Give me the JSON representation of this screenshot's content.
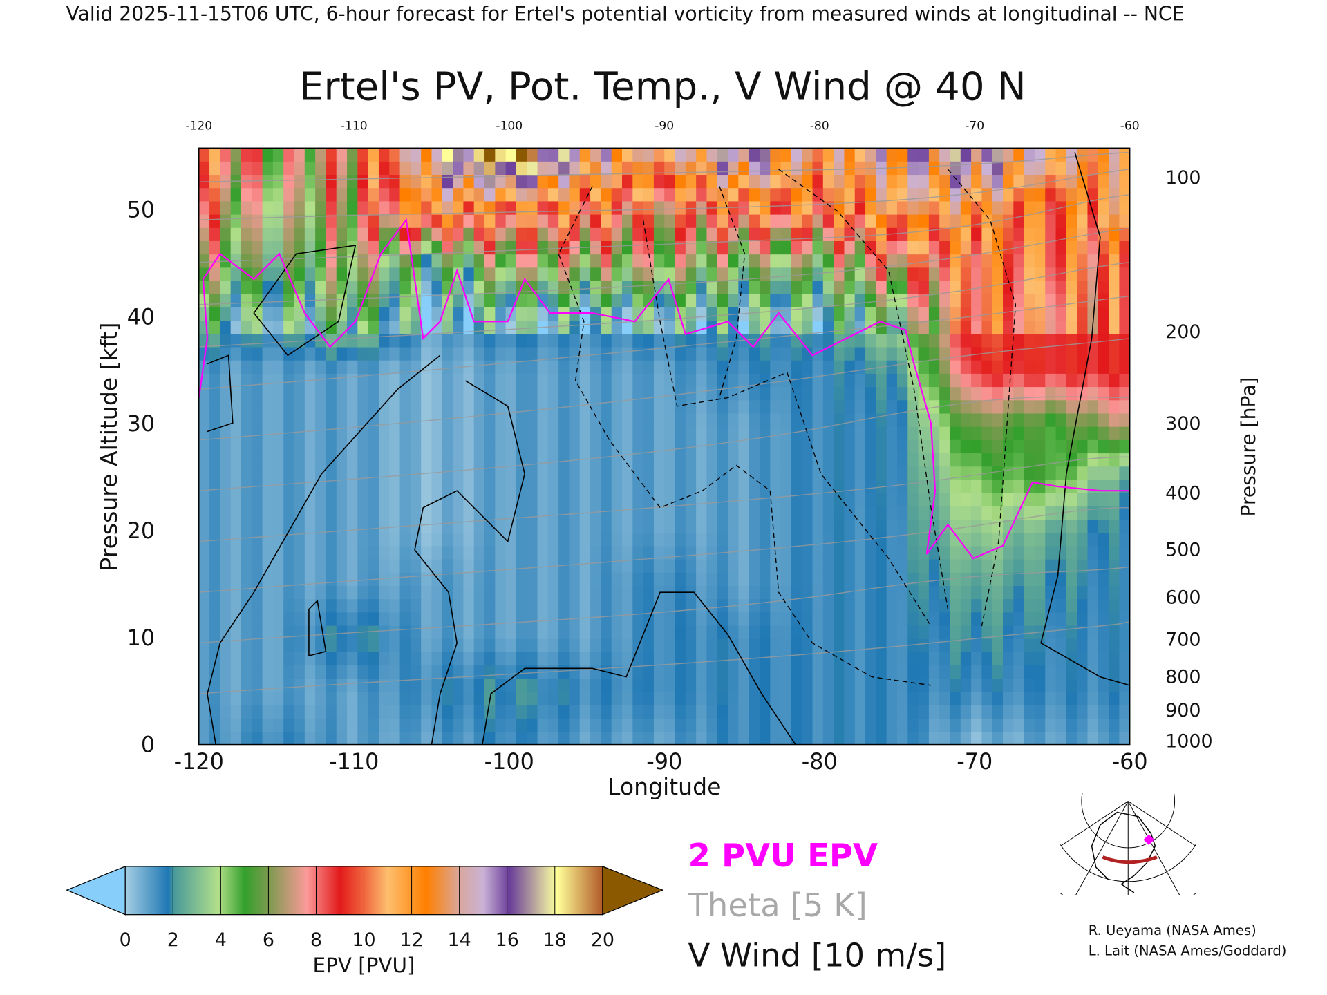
{
  "header": {
    "valid_line": "Valid 2025-11-15T06 UTC, 6-hour forecast for Ertel's potential vorticity from measured winds at longitudinal -- NCE"
  },
  "chart_data": {
    "type": "heatmap",
    "title": "Ertel's PV, Pot. Temp., V Wind @ 40 N",
    "xlabel": "Longitude",
    "ylabel": "Pressure Altitude [kft]",
    "y2label": "Pressure [hPa]",
    "xlim": [
      -120,
      -60
    ],
    "ylim": [
      0,
      55.8
    ],
    "x_ticks": [
      "-120",
      "-110",
      "-100",
      "-90",
      "-80",
      "-70",
      "-60"
    ],
    "x_tick_values": [
      -120,
      -110,
      -100,
      -90,
      -80,
      -70,
      -60
    ],
    "top_ticks": [
      "-120",
      "-110",
      "-100",
      "-90",
      "-80",
      "-70",
      "-60"
    ],
    "y_ticks": [
      "0",
      "10",
      "20",
      "30",
      "40",
      "50"
    ],
    "y_tick_values": [
      0,
      10,
      20,
      30,
      40,
      50
    ],
    "pressure_ticks": [
      "100",
      "200",
      "300",
      "400",
      "500",
      "600",
      "700",
      "800",
      "900",
      "1000"
    ],
    "pressure_values": [
      100,
      200,
      300,
      400,
      500,
      600,
      700,
      800,
      900,
      1000
    ],
    "grid_lon": [
      -120,
      -115,
      -110,
      -105,
      -100,
      -95,
      -90,
      -85,
      -80,
      -75,
      -70,
      -65,
      -60
    ],
    "grid_alt_kft": [
      0,
      5,
      10,
      15,
      20,
      25,
      30,
      35,
      40,
      45,
      50,
      55
    ],
    "epv_pvu": [
      [
        1,
        1.5,
        1,
        1,
        1.5,
        1,
        1,
        1.5,
        1.5,
        1.5,
        0.5,
        1,
        1
      ],
      [
        1,
        1,
        1,
        1.5,
        2,
        1.5,
        1.5,
        1.5,
        1.5,
        1.5,
        1.5,
        1.5,
        1.5
      ],
      [
        1,
        1,
        2,
        1,
        1,
        1,
        1.5,
        1.5,
        1.5,
        1.5,
        2,
        1.6,
        1.5
      ],
      [
        1,
        1,
        1,
        1,
        1,
        1,
        1.5,
        1,
        1.5,
        1.5,
        2.5,
        2,
        1.5
      ],
      [
        1,
        1,
        1,
        0.5,
        1,
        1,
        1,
        1,
        1.5,
        1.5,
        3.5,
        2.5,
        1.5
      ],
      [
        1,
        1,
        1,
        0.5,
        1,
        1,
        1,
        1,
        1.5,
        1.6,
        4.5,
        5,
        2
      ],
      [
        1,
        1,
        1,
        0.5,
        1,
        1,
        1,
        1,
        1.5,
        1.6,
        6,
        5,
        7
      ],
      [
        1,
        1,
        1,
        0.5,
        1,
        1,
        1,
        1.5,
        1.5,
        2,
        9,
        9,
        9
      ],
      [
        3,
        2,
        4,
        1,
        2,
        1.5,
        2,
        2,
        2,
        4,
        10,
        9,
        9
      ],
      [
        6,
        4,
        6,
        3,
        6,
        6,
        6,
        5,
        5,
        8,
        10,
        10,
        9
      ],
      [
        8,
        5,
        7,
        12,
        10,
        10,
        8,
        10,
        10,
        12,
        12,
        10,
        12
      ],
      [
        10,
        6,
        8,
        15,
        20,
        14,
        12,
        16,
        12,
        14,
        16,
        13,
        12
      ]
    ],
    "colorbar": {
      "label": "EPV [PVU]",
      "ticks": [
        "0",
        "2",
        "4",
        "6",
        "8",
        "10",
        "12",
        "14",
        "16",
        "18",
        "20"
      ],
      "range": [
        0,
        20
      ]
    },
    "legend": {
      "pv_line": "2 PVU EPV",
      "theta": "Theta [5 K]",
      "vwind": "V Wind [10 m/s]",
      "pv_color": "#ff00ff",
      "theta_color": "#a8a8a8",
      "vwind_color": "#000000"
    }
  },
  "credits": {
    "line1": "R. Ueyama (NASA Ames)",
    "line2": "L. Lait (NASA Ames/Goddard)"
  }
}
